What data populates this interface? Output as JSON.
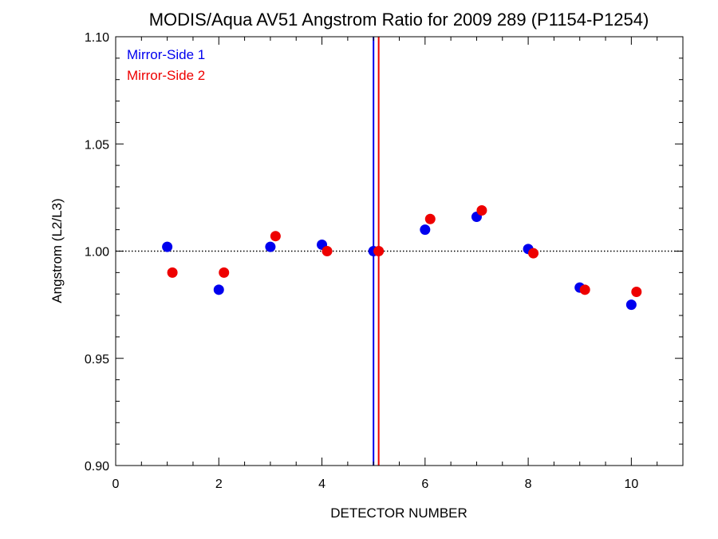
{
  "chart_data": {
    "type": "scatter",
    "title": "MODIS/Aqua AV51 Angstrom Ratio for 2009 289 (P1154-P1254)",
    "xlabel": "DETECTOR NUMBER",
    "ylabel": "Angstrom (L2/L3)",
    "xlim": [
      0,
      11
    ],
    "ylim": [
      0.9,
      1.1
    ],
    "x_ticks": [
      0,
      2,
      4,
      6,
      8,
      10
    ],
    "y_ticks": [
      0.9,
      0.95,
      1.0,
      1.05,
      1.1
    ],
    "x_tick_labels": [
      "0",
      "2",
      "4",
      "6",
      "8",
      "10"
    ],
    "y_tick_labels": [
      "0.90",
      "0.95",
      "1.00",
      "1.05",
      "1.10"
    ],
    "reference_line": {
      "y": 1.0,
      "style": "dotted",
      "color": "#000000"
    },
    "vertical_lines": [
      {
        "x": 5.0,
        "color": "#0000ee"
      },
      {
        "x": 5.1,
        "color": "#ee0000"
      }
    ],
    "legend_position": "top-left",
    "series": [
      {
        "name": "Mirror-Side 1",
        "color": "#0000ee",
        "x": [
          1,
          2,
          3,
          4,
          5,
          6,
          7,
          8,
          9,
          10
        ],
        "y": [
          1.002,
          0.982,
          1.002,
          1.003,
          1.0,
          1.01,
          1.016,
          1.001,
          0.983,
          0.975
        ]
      },
      {
        "name": "Mirror-Side 2",
        "color": "#ee0000",
        "x": [
          1.1,
          2.1,
          3.1,
          4.1,
          5.1,
          6.1,
          7.1,
          8.1,
          9.1,
          10.1
        ],
        "y": [
          0.99,
          0.99,
          1.007,
          1.0,
          1.0,
          1.015,
          1.019,
          0.999,
          0.982,
          0.981
        ]
      }
    ]
  }
}
